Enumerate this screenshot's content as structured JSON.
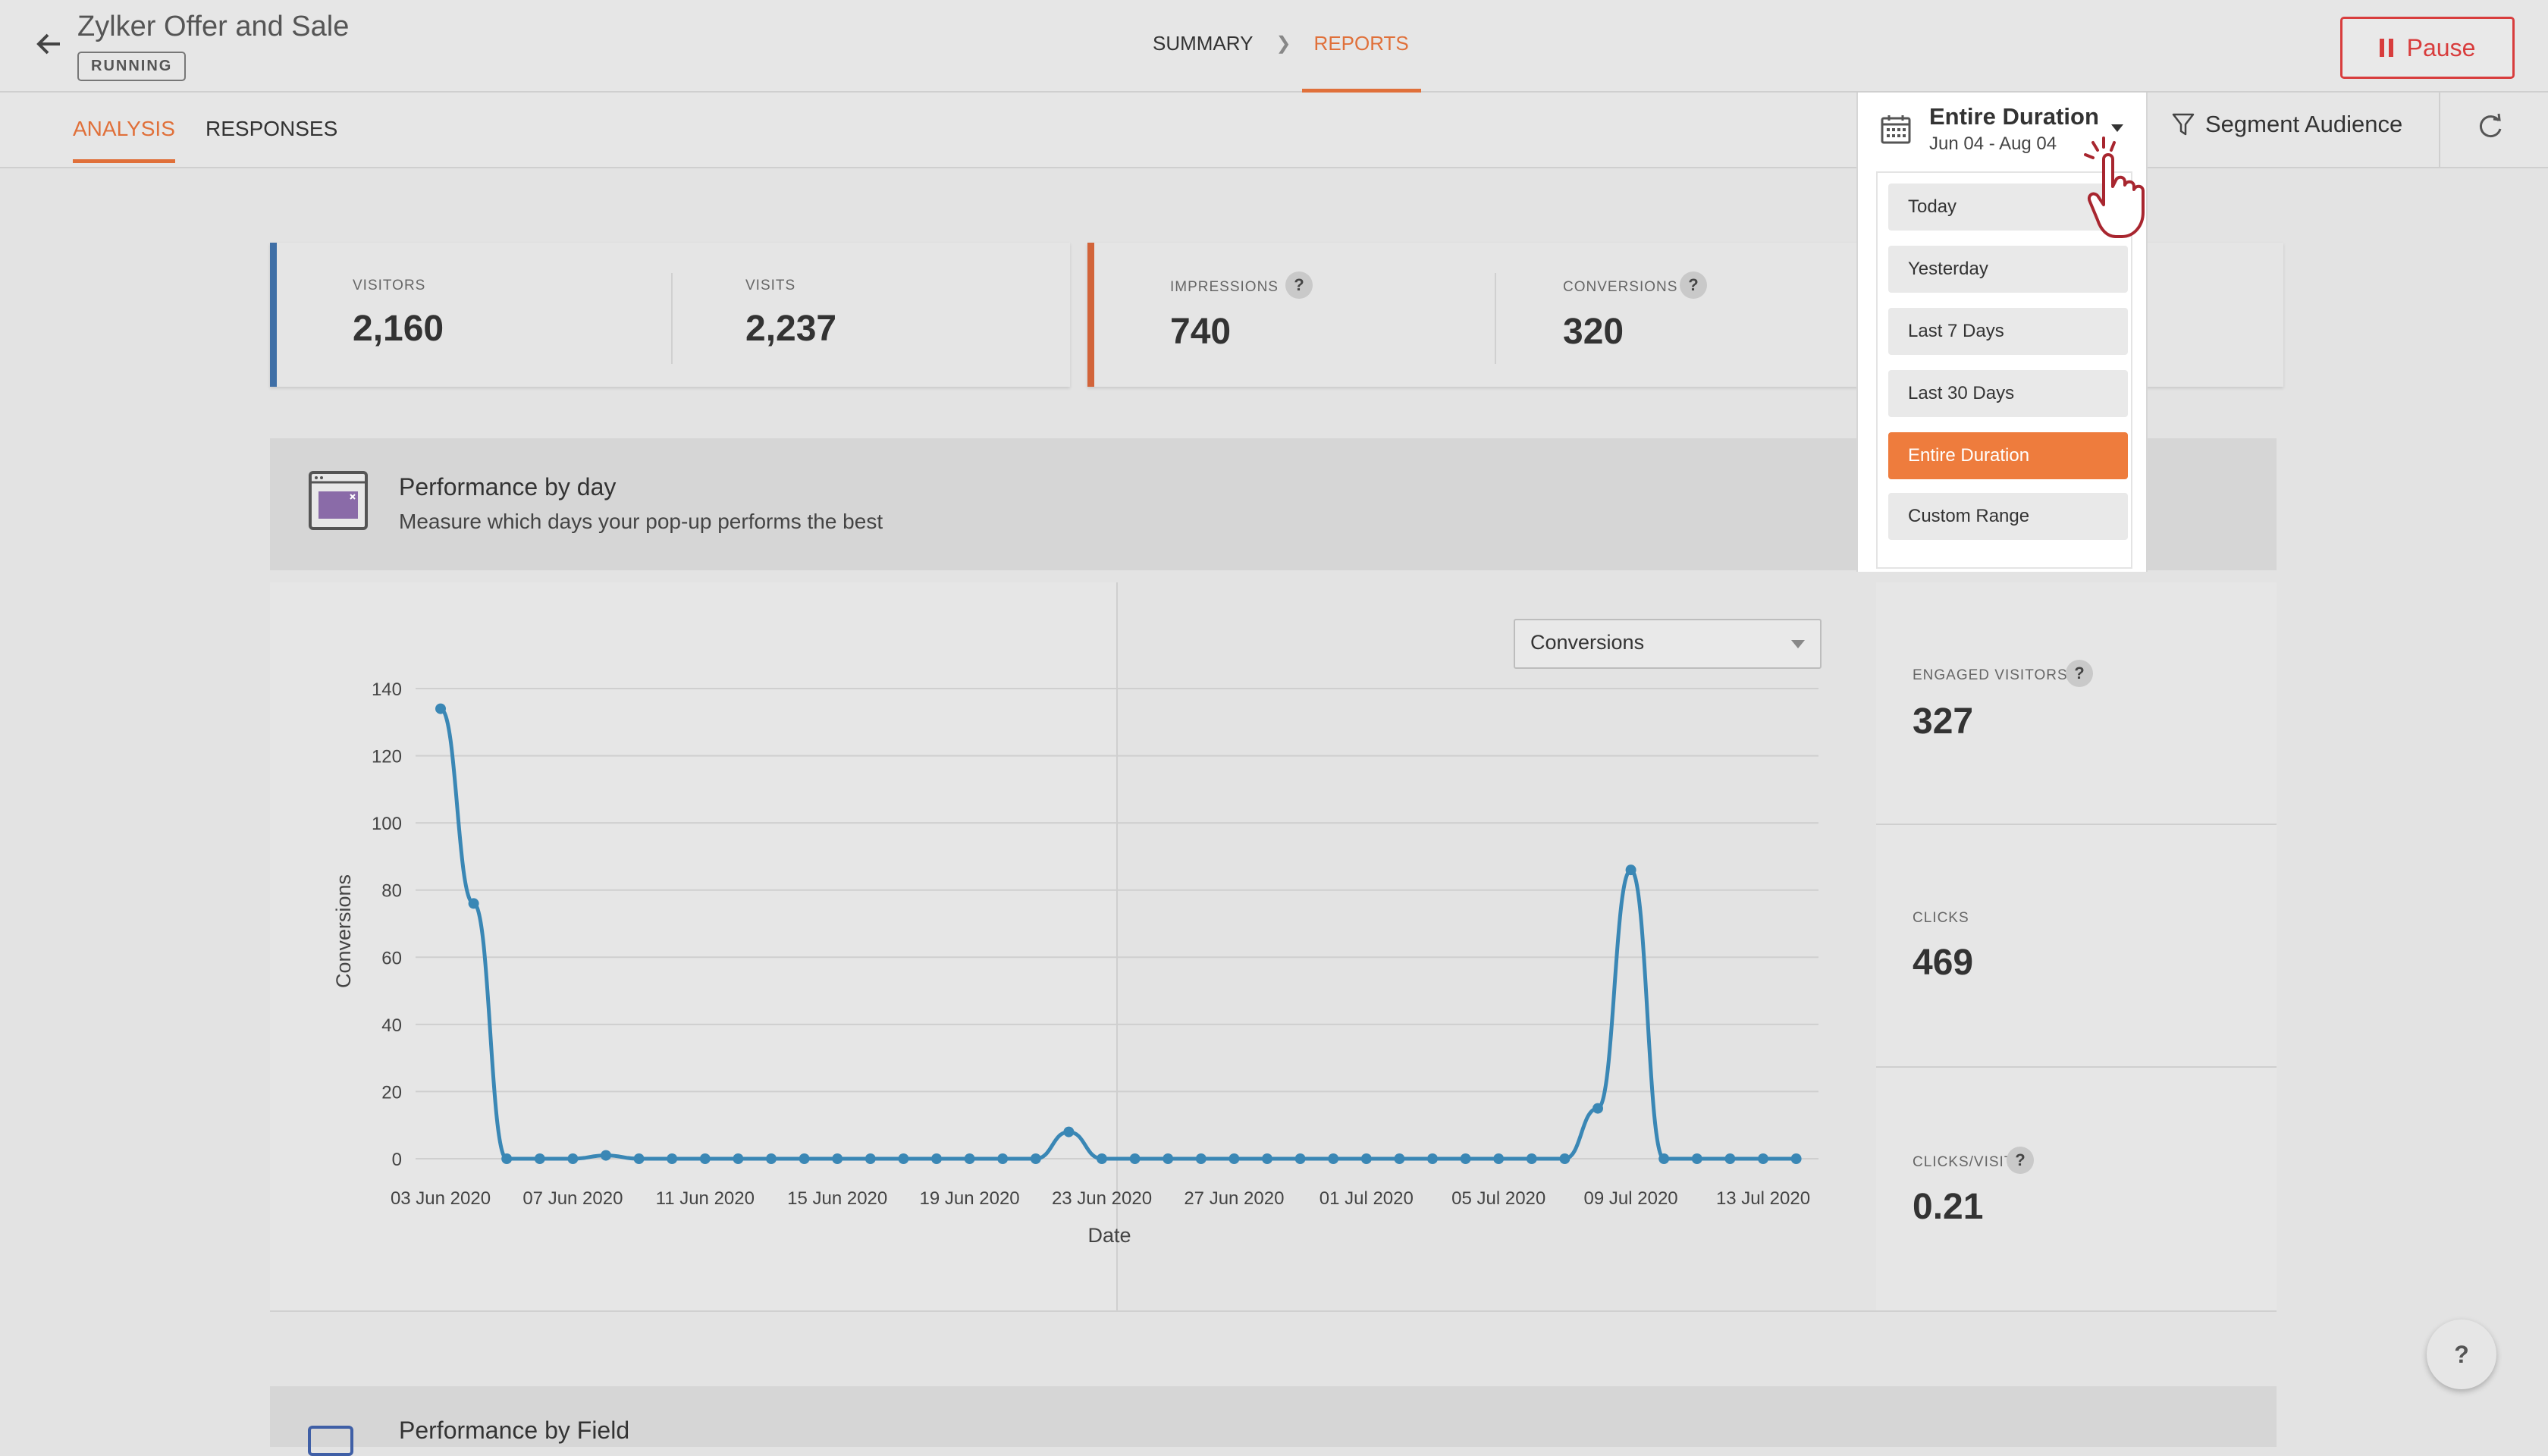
{
  "header": {
    "back_icon": "arrow-left-icon",
    "title": "Zylker Offer and Sale",
    "status": "RUNNING",
    "breadcrumb": [
      "SUMMARY",
      "REPORTS"
    ],
    "pause_label": "Pause"
  },
  "tabs": [
    "ANALYSIS",
    "RESPONSES"
  ],
  "date_picker": {
    "label": "Entire Duration",
    "range": "Jun 04 - Aug 04",
    "options": [
      "Today",
      "Yesterday",
      "Last 7 Days",
      "Last 30 Days",
      "Entire Duration",
      "Custom Range"
    ],
    "selected": "Entire Duration"
  },
  "segment_label": "Segment Audience",
  "metrics": {
    "visitors_label": "VISITORS",
    "visitors": "2,160",
    "visits_label": "VISITS",
    "visits": "2,237",
    "impressions_label": "IMPRESSIONS",
    "impressions": "740",
    "conversions_label": "CONVERSIONS",
    "conversions": "320"
  },
  "section": {
    "title": "Performance by day",
    "subtitle": "Measure which days your pop-up performs the best"
  },
  "metric_select": "Conversions",
  "stats": {
    "engaged_label": "ENGAGED VISITORS",
    "engaged": "327",
    "clicks_label": "CLICKS",
    "clicks": "469",
    "cpv_label": "CLICKS/VISIT",
    "cpv": "0.21"
  },
  "section2_title": "Performance by Field",
  "help_label": "?",
  "colors": {
    "accent": "#e0703a",
    "danger": "#d83d3d",
    "line": "#3a87b5",
    "active_item": "#ee7c3d"
  },
  "chart_data": {
    "type": "line",
    "xlabel": "Date",
    "ylabel": "Conversions",
    "ylim": [
      0,
      140
    ],
    "yticks": [
      0,
      20,
      40,
      60,
      80,
      100,
      120,
      140
    ],
    "xtick_labels": [
      "03 Jun 2020",
      "07 Jun 2020",
      "11 Jun 2020",
      "15 Jun 2020",
      "19 Jun 2020",
      "23 Jun 2020",
      "27 Jun 2020",
      "01 Jul 2020",
      "05 Jul 2020",
      "09 Jul 2020",
      "13 Jul 2020"
    ],
    "x_start": "03 Jun 2020",
    "series": [
      {
        "values": [
          134,
          76,
          0,
          0,
          0,
          1,
          0,
          0,
          0,
          0,
          0,
          0,
          0,
          0,
          0,
          0,
          0,
          0,
          0,
          8,
          0,
          0,
          0,
          0,
          0,
          0,
          0,
          0,
          0,
          0,
          0,
          0,
          0,
          0,
          0,
          15,
          86,
          0,
          0,
          0,
          0,
          0
        ]
      }
    ],
    "grid": true
  }
}
